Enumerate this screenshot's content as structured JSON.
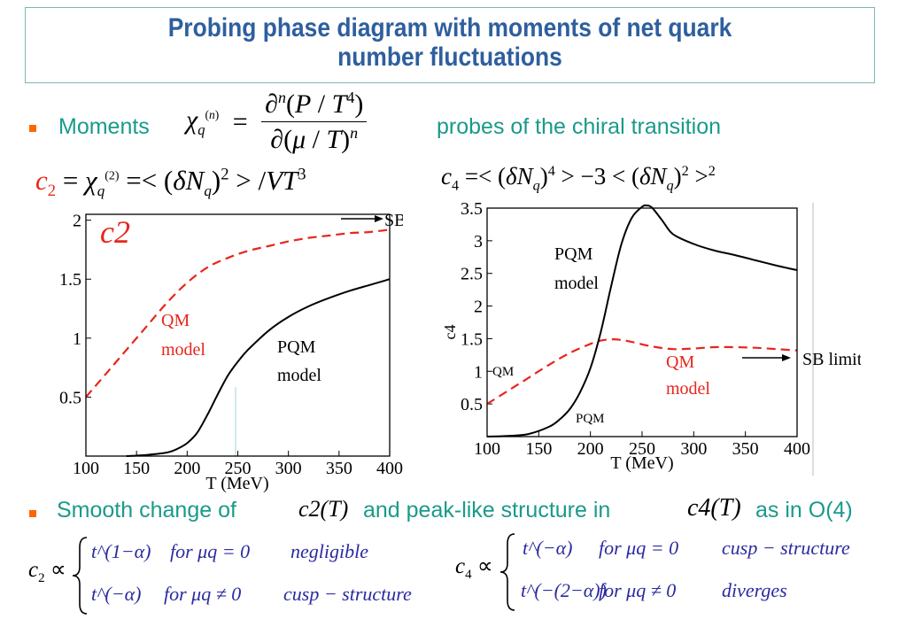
{
  "slide": {
    "title_line1": "Probing phase diagram with moments of  net quark",
    "title_line2": "number  fluctuations",
    "bullet1_prefix": "Moments",
    "bullet1_suffix": "probes of  the chiral transition",
    "bullet2_a": "Smooth  change of",
    "bullet2_b": "and peak-like structure in",
    "bullet2_c": "as in O(4)",
    "c2_inline": "c2(T)",
    "c4_inline": "c4(T)"
  },
  "formulas": {
    "moments": "χ_q^(n) = ∂^n(P/T^4) / ∂(μ/T)^n",
    "c2_def": "c2 = χ_q^(2) =< (δN_q)^2 > /VT^3",
    "c4_def": "c4 =< (δN_q)^4 > −3 < (δN_q)^2 >^2",
    "c2_case1_expr": "t^(1−α)",
    "c2_case1_cond": "for  μq = 0",
    "c2_case1_note": "negligible",
    "c2_case2_expr": "t^(−α)",
    "c2_case2_cond": "for  μq ≠ 0",
    "c2_case2_note": "cusp − structure",
    "c4_case1_expr": "t^(−α)",
    "c4_case1_cond": "for  μq = 0",
    "c4_case1_note": "cusp − structure",
    "c4_case2_expr": "t^(−(2−α))",
    "c4_case2_cond": "for  μq ≠ 0",
    "c4_case2_note": "diverges"
  },
  "colors": {
    "title": "#2e5f9e",
    "teal_text": "#1a9a8a",
    "bullet": "#ff6600",
    "qm_curve": "#e8251c",
    "pqm_curve": "#000000",
    "formula_text": "#2a2aa0"
  },
  "chart_data": [
    {
      "type": "line",
      "title": "c2",
      "xlabel": "T (MeV)",
      "ylabel": "",
      "xlim": [
        100,
        400
      ],
      "ylim": [
        0.0,
        2.05
      ],
      "x_ticks": [
        100,
        150,
        200,
        250,
        300,
        350,
        400
      ],
      "y_ticks": [
        0.5,
        1,
        1.5,
        2
      ],
      "series": [
        {
          "name": "QM model",
          "style": "dashed",
          "x": [
            100,
            120,
            140,
            160,
            180,
            200,
            220,
            240,
            260,
            280,
            300,
            320,
            340,
            360,
            380,
            400
          ],
          "y": [
            0.5,
            0.7,
            0.9,
            1.1,
            1.3,
            1.47,
            1.6,
            1.68,
            1.74,
            1.78,
            1.82,
            1.85,
            1.87,
            1.89,
            1.9,
            1.92
          ]
        },
        {
          "name": "PQM model",
          "style": "solid",
          "x": [
            140,
            160,
            180,
            190,
            200,
            210,
            220,
            230,
            240,
            250,
            260,
            280,
            300,
            320,
            340,
            360,
            380,
            400
          ],
          "y": [
            0.0,
            0.01,
            0.03,
            0.06,
            0.11,
            0.2,
            0.35,
            0.52,
            0.68,
            0.8,
            0.9,
            1.06,
            1.18,
            1.27,
            1.34,
            1.4,
            1.45,
            1.5
          ]
        }
      ],
      "annotations": [
        "QM",
        "model",
        "PQM",
        "model",
        "SB"
      ]
    },
    {
      "type": "line",
      "title": "",
      "xlabel": "T (MeV)",
      "ylabel": "c4",
      "xlim": [
        100,
        400
      ],
      "ylim": [
        0.0,
        3.5
      ],
      "x_ticks": [
        100,
        150,
        200,
        250,
        300,
        350,
        400
      ],
      "y_ticks": [
        0.5,
        1,
        1.5,
        2,
        2.5,
        3,
        3.5
      ],
      "series": [
        {
          "name": "QM model",
          "style": "dashed",
          "x": [
            100,
            120,
            140,
            160,
            180,
            200,
            210,
            220,
            230,
            240,
            260,
            280,
            300,
            320,
            340,
            360,
            380,
            400
          ],
          "y": [
            0.5,
            0.7,
            0.9,
            1.1,
            1.28,
            1.42,
            1.47,
            1.49,
            1.48,
            1.45,
            1.38,
            1.34,
            1.35,
            1.37,
            1.37,
            1.36,
            1.34,
            1.32
          ]
        },
        {
          "name": "PQM model",
          "style": "solid",
          "x": [
            100,
            120,
            140,
            160,
            170,
            180,
            190,
            200,
            210,
            220,
            230,
            240,
            250,
            255,
            260,
            270,
            280,
            300,
            320,
            340,
            360,
            380,
            400
          ],
          "y": [
            0.0,
            0.01,
            0.04,
            0.15,
            0.26,
            0.42,
            0.68,
            1.05,
            1.6,
            2.3,
            2.95,
            3.35,
            3.52,
            3.54,
            3.5,
            3.3,
            3.1,
            2.95,
            2.85,
            2.78,
            2.7,
            2.62,
            2.55
          ]
        }
      ],
      "annotations": [
        "PQM",
        "model",
        "QM",
        "model",
        "QM",
        "PQM",
        "SB limit"
      ]
    }
  ]
}
